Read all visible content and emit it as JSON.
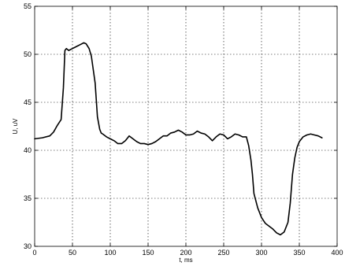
{
  "chart_data": {
    "type": "line",
    "title": "",
    "xlabel": "t, ms",
    "ylabel": "U, uV",
    "xlim": [
      0,
      400
    ],
    "ylim": [
      30,
      55
    ],
    "xticks": [
      0,
      50,
      100,
      150,
      200,
      250,
      300,
      350,
      400
    ],
    "yticks": [
      30,
      35,
      40,
      45,
      50,
      55
    ],
    "grid": true,
    "legend": "none",
    "line_color": "#000000",
    "series": [
      {
        "x": [
          0,
          10,
          20,
          25,
          30,
          35,
          38,
          40,
          42,
          45,
          50,
          55,
          60,
          65,
          68,
          72,
          75,
          80,
          83,
          86,
          88,
          90,
          95,
          100,
          105,
          110,
          115,
          120,
          125,
          130,
          135,
          140,
          145,
          150,
          155,
          160,
          165,
          170,
          175,
          180,
          185,
          190,
          195,
          200,
          205,
          210,
          215,
          220,
          225,
          230,
          235,
          240,
          245,
          250,
          255,
          260,
          265,
          270,
          275,
          280,
          283,
          286,
          288,
          290,
          295,
          300,
          305,
          310,
          315,
          320,
          325,
          330,
          335,
          338,
          341,
          344,
          347,
          350,
          355,
          360,
          365,
          370,
          375,
          380
        ],
        "values": [
          41.2,
          41.3,
          41.5,
          41.9,
          42.6,
          43.2,
          46.5,
          50.4,
          50.6,
          50.4,
          50.6,
          50.8,
          51.0,
          51.2,
          51.1,
          50.6,
          49.8,
          47.0,
          43.5,
          42.2,
          41.8,
          41.7,
          41.4,
          41.2,
          41.0,
          40.7,
          40.7,
          41.0,
          41.5,
          41.2,
          40.9,
          40.7,
          40.7,
          40.6,
          40.7,
          40.9,
          41.2,
          41.5,
          41.5,
          41.8,
          41.9,
          42.1,
          41.9,
          41.6,
          41.6,
          41.7,
          42.0,
          41.8,
          41.7,
          41.4,
          41.0,
          41.4,
          41.7,
          41.6,
          41.2,
          41.4,
          41.7,
          41.6,
          41.4,
          41.4,
          40.5,
          39.0,
          37.5,
          35.5,
          34.0,
          33.0,
          32.4,
          32.1,
          31.8,
          31.4,
          31.2,
          31.5,
          32.5,
          34.5,
          37.5,
          39.2,
          40.3,
          40.9,
          41.4,
          41.6,
          41.7,
          41.6,
          41.5,
          41.3
        ]
      }
    ]
  }
}
